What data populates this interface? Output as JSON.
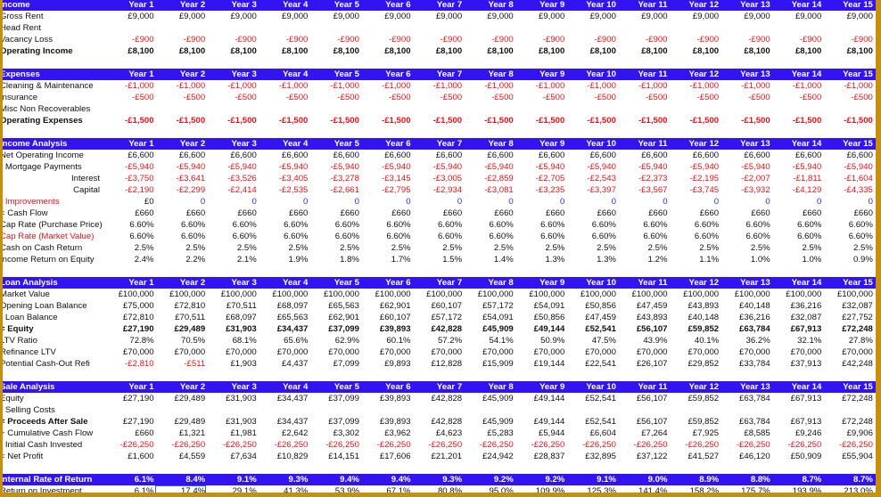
{
  "colors": {
    "header_bg": "#3214f2",
    "negative": "#e3151c",
    "input_blue": "#2a2ae8",
    "frame": "#c8900a",
    "selection": "#2b6bd6"
  },
  "years": [
    "Year 1",
    "Year 2",
    "Year 3",
    "Year 4",
    "Year 5",
    "Year 6",
    "Year 7",
    "Year 8",
    "Year 9",
    "Year 10",
    "Year 11",
    "Year 12",
    "Year 13",
    "Year 14",
    "Year 15"
  ],
  "sections": [
    {
      "title": "Income",
      "rows": [
        {
          "label": "Gross Rent",
          "values": [
            "£9,000",
            "£9,000",
            "£9,000",
            "£9,000",
            "£9,000",
            "£9,000",
            "£9,000",
            "£9,000",
            "£9,000",
            "£9,000",
            "£9,000",
            "£9,000",
            "£9,000",
            "£9,000",
            "£9,000"
          ]
        },
        {
          "label": "Head Rent",
          "values": []
        },
        {
          "label": "Vacancy Loss",
          "values": [
            "-£900",
            "-£900",
            "-£900",
            "-£900",
            "-£900",
            "-£900",
            "-£900",
            "-£900",
            "-£900",
            "-£900",
            "-£900",
            "-£900",
            "-£900",
            "-£900",
            "-£900"
          ]
        },
        {
          "label": "Operating Income",
          "bold": true,
          "values": [
            "£8,100",
            "£8,100",
            "£8,100",
            "£8,100",
            "£8,100",
            "£8,100",
            "£8,100",
            "£8,100",
            "£8,100",
            "£8,100",
            "£8,100",
            "£8,100",
            "£8,100",
            "£8,100",
            "£8,100"
          ]
        }
      ]
    },
    {
      "title": "Expenses",
      "rows": [
        {
          "label": "Cleaning & Maintenance",
          "values": [
            "-£1,000",
            "-£1,000",
            "-£1,000",
            "-£1,000",
            "-£1,000",
            "-£1,000",
            "-£1,000",
            "-£1,000",
            "-£1,000",
            "-£1,000",
            "-£1,000",
            "-£1,000",
            "-£1,000",
            "-£1,000",
            "-£1,000"
          ]
        },
        {
          "label": "Insurance",
          "values": [
            "-£500",
            "-£500",
            "-£500",
            "-£500",
            "-£500",
            "-£500",
            "-£500",
            "-£500",
            "-£500",
            "-£500",
            "-£500",
            "-£500",
            "-£500",
            "-£500",
            "-£500"
          ]
        },
        {
          "label": "Misc Non Recoverables",
          "values": []
        },
        {
          "label": "Operating Expenses",
          "bold": true,
          "values": [
            "-£1,500",
            "-£1,500",
            "-£1,500",
            "-£1,500",
            "-£1,500",
            "-£1,500",
            "-£1,500",
            "-£1,500",
            "-£1,500",
            "-£1,500",
            "-£1,500",
            "-£1,500",
            "-£1,500",
            "-£1,500",
            "-£1,500"
          ]
        }
      ]
    },
    {
      "title": "Income Analysis",
      "rows": [
        {
          "label": "Net Operating Income",
          "values": [
            "£6,600",
            "£6,600",
            "£6,600",
            "£6,600",
            "£6,600",
            "£6,600",
            "£6,600",
            "£6,600",
            "£6,600",
            "£6,600",
            "£6,600",
            "£6,600",
            "£6,600",
            "£6,600",
            "£6,600"
          ]
        },
        {
          "label": "- Mortgage Payments",
          "values": [
            "-£5,940",
            "-£5,940",
            "-£5,940",
            "-£5,940",
            "-£5,940",
            "-£5,940",
            "-£5,940",
            "-£5,940",
            "-£5,940",
            "-£5,940",
            "-£5,940",
            "-£5,940",
            "-£5,940",
            "-£5,940",
            "-£5,940"
          ]
        },
        {
          "label": "Interest",
          "align": "right",
          "values": [
            "-£3,750",
            "-£3,641",
            "-£3,526",
            "-£3,405",
            "-£3,278",
            "-£3,145",
            "-£3,005",
            "-£2,859",
            "-£2,705",
            "-£2,543",
            "-£2,373",
            "-£2,195",
            "-£2,007",
            "-£1,811",
            "-£1,604"
          ]
        },
        {
          "label": "Capital",
          "align": "right",
          "values": [
            "-£2,190",
            "-£2,299",
            "-£2,414",
            "-£2,535",
            "-£2,661",
            "-£2,795",
            "-£2,934",
            "-£3,081",
            "-£3,235",
            "-£3,397",
            "-£3,567",
            "-£3,745",
            "-£3,932",
            "-£4,129",
            "-£4,335"
          ]
        },
        {
          "label": "- Improvements",
          "label_red": true,
          "input_blue": true,
          "values": [
            "£0",
            "0",
            "0",
            "0",
            "0",
            "0",
            "0",
            "0",
            "0",
            "0",
            "0",
            "0",
            "0",
            "0",
            "0"
          ]
        },
        {
          "label": "= Cash Flow",
          "values": [
            "£660",
            "£660",
            "£660",
            "£660",
            "£660",
            "£660",
            "£660",
            "£660",
            "£660",
            "£660",
            "£660",
            "£660",
            "£660",
            "£660",
            "£660"
          ]
        },
        {
          "label": "Cap Rate (Purchase Price)",
          "values": [
            "6.60%",
            "6.60%",
            "6.60%",
            "6.60%",
            "6.60%",
            "6.60%",
            "6.60%",
            "6.60%",
            "6.60%",
            "6.60%",
            "6.60%",
            "6.60%",
            "6.60%",
            "6.60%",
            "6.60%"
          ]
        },
        {
          "label": "Cap Rate (Market Value)",
          "label_red": true,
          "values": [
            "6.60%",
            "6.60%",
            "6.60%",
            "6.60%",
            "6.60%",
            "6.60%",
            "6.60%",
            "6.60%",
            "6.60%",
            "6.60%",
            "6.60%",
            "6.60%",
            "6.60%",
            "6.60%",
            "6.60%"
          ]
        },
        {
          "label": "Cash on Cash Return",
          "values": [
            "2.5%",
            "2.5%",
            "2.5%",
            "2.5%",
            "2.5%",
            "2.5%",
            "2.5%",
            "2.5%",
            "2.5%",
            "2.5%",
            "2.5%",
            "2.5%",
            "2.5%",
            "2.5%",
            "2.5%"
          ]
        },
        {
          "label": "Income Return on Equity",
          "values": [
            "2.4%",
            "2.2%",
            "2.1%",
            "1.9%",
            "1.8%",
            "1.7%",
            "1.5%",
            "1.4%",
            "1.3%",
            "1.3%",
            "1.2%",
            "1.1%",
            "1.0%",
            "1.0%",
            "0.9%"
          ]
        }
      ]
    },
    {
      "title": "Loan Analysis",
      "rows": [
        {
          "label": "Market Value",
          "values": [
            "£100,000",
            "£100,000",
            "£100,000",
            "£100,000",
            "£100,000",
            "£100,000",
            "£100,000",
            "£100,000",
            "£100,000",
            "£100,000",
            "£100,000",
            "£100,000",
            "£100,000",
            "£100,000",
            "£100,000"
          ]
        },
        {
          "label": "Opening Loan Balance",
          "values": [
            "£75,000",
            "£72,810",
            "£70,511",
            "£68,097",
            "£65,563",
            "£62,901",
            "£60,107",
            "£57,172",
            "£54,091",
            "£50,856",
            "£47,459",
            "£43,893",
            "£40,148",
            "£36,216",
            "£32,087"
          ]
        },
        {
          "label": "- Loan Balance",
          "values": [
            "£72,810",
            "£70,511",
            "£68,097",
            "£65,563",
            "£62,901",
            "£60,107",
            "£57,172",
            "£54,091",
            "£50,856",
            "£47,459",
            "£43,893",
            "£40,148",
            "£36,216",
            "£32,087",
            "£27,752"
          ]
        },
        {
          "label": "= Equity",
          "bold": true,
          "values": [
            "£27,190",
            "£29,489",
            "£31,903",
            "£34,437",
            "£37,099",
            "£39,893",
            "£42,828",
            "£45,909",
            "£49,144",
            "£52,541",
            "£56,107",
            "£59,852",
            "£63,784",
            "£67,913",
            "£72,248"
          ]
        },
        {
          "label": "LTV Ratio",
          "values": [
            "72.8%",
            "70.5%",
            "68.1%",
            "65.6%",
            "62.9%",
            "60.1%",
            "57.2%",
            "54.1%",
            "50.9%",
            "47.5%",
            "43.9%",
            "40.1%",
            "36.2%",
            "32.1%",
            "27.8%"
          ]
        },
        {
          "label": "Refinance LTV",
          "values": [
            "£70,000",
            "£70,000",
            "£70,000",
            "£70,000",
            "£70,000",
            "£70,000",
            "£70,000",
            "£70,000",
            "£70,000",
            "£70,000",
            "£70,000",
            "£70,000",
            "£70,000",
            "£70,000",
            "£70,000"
          ]
        },
        {
          "label": "Potential Cash-Out Refi",
          "values": [
            "-£2,810",
            "-£511",
            "£1,903",
            "£4,437",
            "£7,099",
            "£9,893",
            "£12,828",
            "£15,909",
            "£19,144",
            "£22,541",
            "£26,107",
            "£29,852",
            "£33,784",
            "£37,913",
            "£42,248"
          ]
        }
      ]
    },
    {
      "title": "Sale Analysis",
      "rows": [
        {
          "label": "Equity",
          "values": [
            "£27,190",
            "£29,489",
            "£31,903",
            "£34,437",
            "£37,099",
            "£39,893",
            "£42,828",
            "£45,909",
            "£49,144",
            "£52,541",
            "£56,107",
            "£59,852",
            "£63,784",
            "£67,913",
            "£72,248"
          ]
        },
        {
          "label": "- Selling Costs",
          "values": []
        },
        {
          "label": "= Proceeds After Sale",
          "bold_label": true,
          "values": [
            "£27,190",
            "£29,489",
            "£31,903",
            "£34,437",
            "£37,099",
            "£39,893",
            "£42,828",
            "£45,909",
            "£49,144",
            "£52,541",
            "£56,107",
            "£59,852",
            "£63,784",
            "£67,913",
            "£72,248"
          ]
        },
        {
          "label": "+ Cumulative Cash Flow",
          "values": [
            "£660",
            "£1,321",
            "£1,981",
            "£2,642",
            "£3,302",
            "£3,962",
            "£4,623",
            "£5,283",
            "£5,944",
            "£6,604",
            "£7,264",
            "£7,925",
            "£8,585",
            "£9,246",
            "£9,906"
          ]
        },
        {
          "label": "- Initial Cash Invested",
          "values": [
            "-£26,250",
            "-£26,250",
            "-£26,250",
            "-£26,250",
            "-£26,250",
            "-£26,250",
            "-£26,250",
            "-£26,250",
            "-£26,250",
            "-£26,250",
            "-£26,250",
            "-£26,250",
            "-£26,250",
            "-£26,250",
            "-£26,250"
          ]
        },
        {
          "label": "= Net Profit",
          "values": [
            "£1,600",
            "£4,559",
            "£7,634",
            "£10,829",
            "£14,151",
            "£17,606",
            "£21,201",
            "£24,942",
            "£28,837",
            "£32,895",
            "£37,122",
            "£41,527",
            "£46,120",
            "£50,909",
            "£55,904"
          ]
        }
      ]
    }
  ],
  "irr": {
    "label": "Internal Rate of Return",
    "values": [
      "6.1%",
      "8.4%",
      "9.1%",
      "9.3%",
      "9.4%",
      "9.4%",
      "9.3%",
      "9.2%",
      "9.2%",
      "9.1%",
      "9.0%",
      "8.9%",
      "8.8%",
      "8.7%",
      "8.7%"
    ]
  },
  "roi": {
    "label": "Return on Investment",
    "selected_index": 1,
    "values": [
      "6.1%",
      "17.4%",
      "29.1%",
      "41.3%",
      "53.9%",
      "67.1%",
      "80.8%",
      "95.0%",
      "109.9%",
      "125.3%",
      "141.4%",
      "158.2%",
      "175.7%",
      "193.9%",
      "213.0%"
    ]
  }
}
